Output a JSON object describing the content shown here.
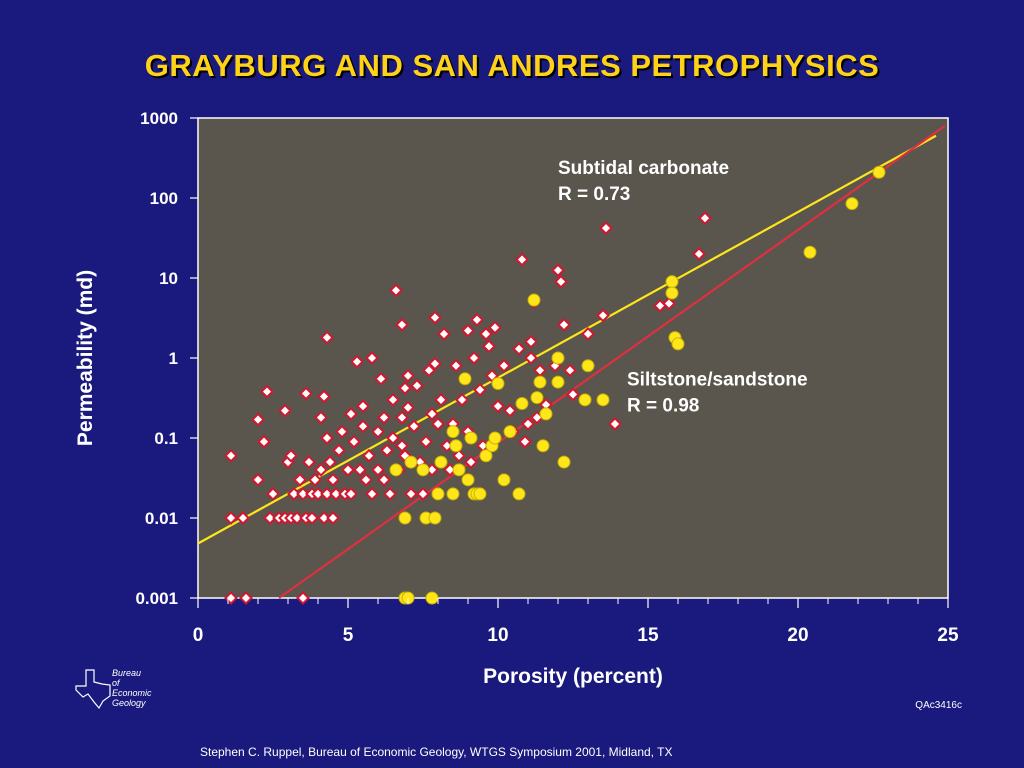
{
  "page": {
    "code": "QAc3416c",
    "credit": "Stephen C. Ruppel, Bureau of Economic Geology, WTGS Symposium 2001, Midland, TX",
    "logo_lines": [
      "Bureau",
      "of",
      "Economic",
      "Geology"
    ],
    "colors": {
      "background": "#1a1a7e",
      "plot_bg": "#5a554d",
      "title": "#ffd21a"
    }
  },
  "chart_data": {
    "type": "scatter",
    "title": "GRAYBURG AND SAN ANDRES PETROPHYSICS",
    "xlabel": "Porosity (percent)",
    "ylabel": "Permeability (md)",
    "xlim": [
      0,
      25
    ],
    "ylim": [
      0.001,
      1000
    ],
    "yscale": "log",
    "x_ticks": [
      0,
      5,
      10,
      15,
      20,
      25
    ],
    "y_ticks": [
      "1000",
      "100",
      "10",
      "1",
      "0.1",
      "0.01",
      "0.001"
    ],
    "grid": false,
    "annotations": [
      {
        "lines": [
          "Subtidal carbonate",
          "R = 0.73"
        ],
        "x": 12,
        "y": 200
      },
      {
        "lines": [
          "Siltstone/sandstone",
          "R = 0.98"
        ],
        "x": 14.3,
        "y": 0.45
      }
    ],
    "fits": [
      {
        "color": "#ffe61a",
        "x": [
          0,
          24.6
        ],
        "y": [
          0.0048,
          600
        ]
      },
      {
        "color": "#e03040",
        "x": [
          2.7,
          24.9
        ],
        "y": [
          0.001,
          800
        ]
      }
    ],
    "series": [
      {
        "marker": "diamond",
        "color": "#ffffff",
        "edge": "#d01830",
        "points": [
          [
            1.1,
            0.06
          ],
          [
            1.1,
            0.01
          ],
          [
            1.5,
            0.01
          ],
          [
            1.1,
            0.001
          ],
          [
            1.6,
            0.001
          ],
          [
            2.0,
            0.03
          ],
          [
            2.0,
            0.17
          ],
          [
            2.2,
            0.09
          ],
          [
            2.3,
            0.38
          ],
          [
            2.4,
            0.01
          ],
          [
            2.5,
            0.02
          ],
          [
            2.7,
            0.01
          ],
          [
            2.9,
            0.01
          ],
          [
            2.9,
            0.22
          ],
          [
            3.0,
            0.05
          ],
          [
            3.1,
            0.01
          ],
          [
            3.1,
            0.06
          ],
          [
            3.2,
            0.02
          ],
          [
            3.3,
            0.01
          ],
          [
            3.4,
            0.03
          ],
          [
            3.5,
            0.02
          ],
          [
            3.5,
            0.001
          ],
          [
            3.6,
            0.01
          ],
          [
            3.6,
            0.36
          ],
          [
            3.7,
            0.05
          ],
          [
            3.8,
            0.02
          ],
          [
            3.8,
            0.01
          ],
          [
            3.9,
            0.03
          ],
          [
            4.0,
            0.02
          ],
          [
            4.1,
            0.18
          ],
          [
            4.1,
            0.04
          ],
          [
            4.2,
            0.01
          ],
          [
            4.2,
            0.33
          ],
          [
            4.3,
            0.02
          ],
          [
            4.3,
            0.1
          ],
          [
            4.3,
            1.8
          ],
          [
            4.4,
            0.05
          ],
          [
            4.5,
            0.01
          ],
          [
            4.5,
            0.03
          ],
          [
            4.6,
            0.02
          ],
          [
            4.7,
            0.07
          ],
          [
            4.8,
            0.12
          ],
          [
            4.9,
            0.02
          ],
          [
            5.0,
            0.04
          ],
          [
            5.1,
            0.2
          ],
          [
            5.1,
            0.02
          ],
          [
            5.2,
            0.09
          ],
          [
            5.3,
            0.9
          ],
          [
            5.4,
            0.04
          ],
          [
            5.5,
            0.14
          ],
          [
            5.5,
            0.25
          ],
          [
            5.6,
            0.03
          ],
          [
            5.7,
            0.06
          ],
          [
            5.8,
            0.02
          ],
          [
            5.8,
            1.0
          ],
          [
            6.0,
            0.04
          ],
          [
            6.0,
            0.12
          ],
          [
            6.1,
            0.55
          ],
          [
            6.2,
            0.03
          ],
          [
            6.2,
            0.18
          ],
          [
            6.3,
            0.07
          ],
          [
            6.4,
            0.02
          ],
          [
            6.5,
            0.3
          ],
          [
            6.5,
            0.1
          ],
          [
            6.6,
            7.0
          ],
          [
            6.7,
            0.04
          ],
          [
            6.8,
            0.08
          ],
          [
            6.8,
            0.18
          ],
          [
            6.8,
            2.6
          ],
          [
            6.9,
            0.42
          ],
          [
            6.9,
            0.06
          ],
          [
            7.0,
            0.24
          ],
          [
            7.0,
            0.6
          ],
          [
            7.1,
            0.02
          ],
          [
            7.2,
            0.14
          ],
          [
            7.3,
            0.45
          ],
          [
            7.4,
            0.05
          ],
          [
            7.5,
            0.02
          ],
          [
            7.6,
            0.09
          ],
          [
            7.7,
            0.7
          ],
          [
            7.8,
            0.2
          ],
          [
            7.8,
            0.04
          ],
          [
            7.9,
            3.2
          ],
          [
            7.9,
            0.85
          ],
          [
            8.0,
            0.15
          ],
          [
            8.1,
            0.3
          ],
          [
            8.2,
            2.0
          ],
          [
            8.3,
            0.08
          ],
          [
            8.4,
            0.04
          ],
          [
            8.5,
            0.15
          ],
          [
            8.6,
            0.8
          ],
          [
            8.7,
            0.06
          ],
          [
            8.8,
            0.3
          ],
          [
            8.9,
            0.55
          ],
          [
            9.0,
            2.2
          ],
          [
            9.0,
            0.12
          ],
          [
            9.1,
            0.05
          ],
          [
            9.2,
            1.0
          ],
          [
            9.3,
            3.0
          ],
          [
            9.4,
            0.4
          ],
          [
            9.5,
            0.08
          ],
          [
            9.6,
            2.0
          ],
          [
            9.7,
            1.4
          ],
          [
            9.8,
            0.6
          ],
          [
            9.9,
            2.4
          ],
          [
            10.0,
            0.25
          ],
          [
            10.2,
            0.8
          ],
          [
            10.4,
            0.22
          ],
          [
            10.5,
            0.12
          ],
          [
            10.7,
            1.3
          ],
          [
            10.8,
            17.0
          ],
          [
            10.9,
            0.09
          ],
          [
            11.0,
            0.15
          ],
          [
            11.1,
            1.6
          ],
          [
            11.1,
            1.0
          ],
          [
            11.2,
            5.0
          ],
          [
            11.3,
            0.18
          ],
          [
            11.4,
            0.7
          ],
          [
            11.6,
            0.26
          ],
          [
            11.9,
            0.8
          ],
          [
            12.0,
            12.5
          ],
          [
            12.1,
            9.0
          ],
          [
            12.2,
            2.6
          ],
          [
            12.4,
            0.7
          ],
          [
            12.5,
            0.35
          ],
          [
            13.0,
            2.0
          ],
          [
            13.5,
            3.4
          ],
          [
            13.6,
            42.0
          ],
          [
            13.9,
            0.15
          ],
          [
            15.4,
            4.5
          ],
          [
            15.7,
            4.8
          ],
          [
            16.7,
            20.0
          ],
          [
            16.9,
            56.0
          ]
        ]
      },
      {
        "marker": "circle",
        "color": "#ffe61a",
        "edge": "#c8b000",
        "points": [
          [
            6.6,
            0.04
          ],
          [
            6.9,
            0.01
          ],
          [
            6.9,
            0.001
          ],
          [
            7.0,
            0.001
          ],
          [
            7.1,
            0.05
          ],
          [
            7.5,
            0.04
          ],
          [
            7.6,
            0.01
          ],
          [
            7.8,
            0.001
          ],
          [
            7.9,
            0.01
          ],
          [
            8.0,
            0.02
          ],
          [
            8.1,
            0.05
          ],
          [
            8.5,
            0.12
          ],
          [
            8.5,
            0.02
          ],
          [
            8.6,
            0.08
          ],
          [
            8.7,
            0.04
          ],
          [
            8.9,
            0.55
          ],
          [
            9.0,
            0.03
          ],
          [
            9.1,
            0.1
          ],
          [
            9.2,
            0.02
          ],
          [
            9.3,
            0.02
          ],
          [
            9.4,
            0.02
          ],
          [
            9.6,
            0.06
          ],
          [
            9.8,
            0.08
          ],
          [
            9.9,
            0.1
          ],
          [
            10.0,
            0.48
          ],
          [
            10.2,
            0.03
          ],
          [
            10.4,
            0.12
          ],
          [
            10.7,
            0.02
          ],
          [
            10.8,
            0.27
          ],
          [
            11.2,
            5.3
          ],
          [
            11.3,
            0.32
          ],
          [
            11.4,
            0.5
          ],
          [
            11.5,
            0.08
          ],
          [
            11.6,
            0.2
          ],
          [
            12.0,
            1.0
          ],
          [
            12.0,
            0.5
          ],
          [
            12.2,
            0.05
          ],
          [
            12.9,
            0.3
          ],
          [
            13.0,
            0.8
          ],
          [
            13.5,
            0.3
          ],
          [
            15.8,
            9.0
          ],
          [
            15.8,
            6.5
          ],
          [
            15.9,
            1.8
          ],
          [
            16.0,
            1.5
          ],
          [
            20.4,
            21.0
          ],
          [
            21.8,
            85.0
          ],
          [
            22.7,
            210.0
          ]
        ]
      }
    ]
  }
}
